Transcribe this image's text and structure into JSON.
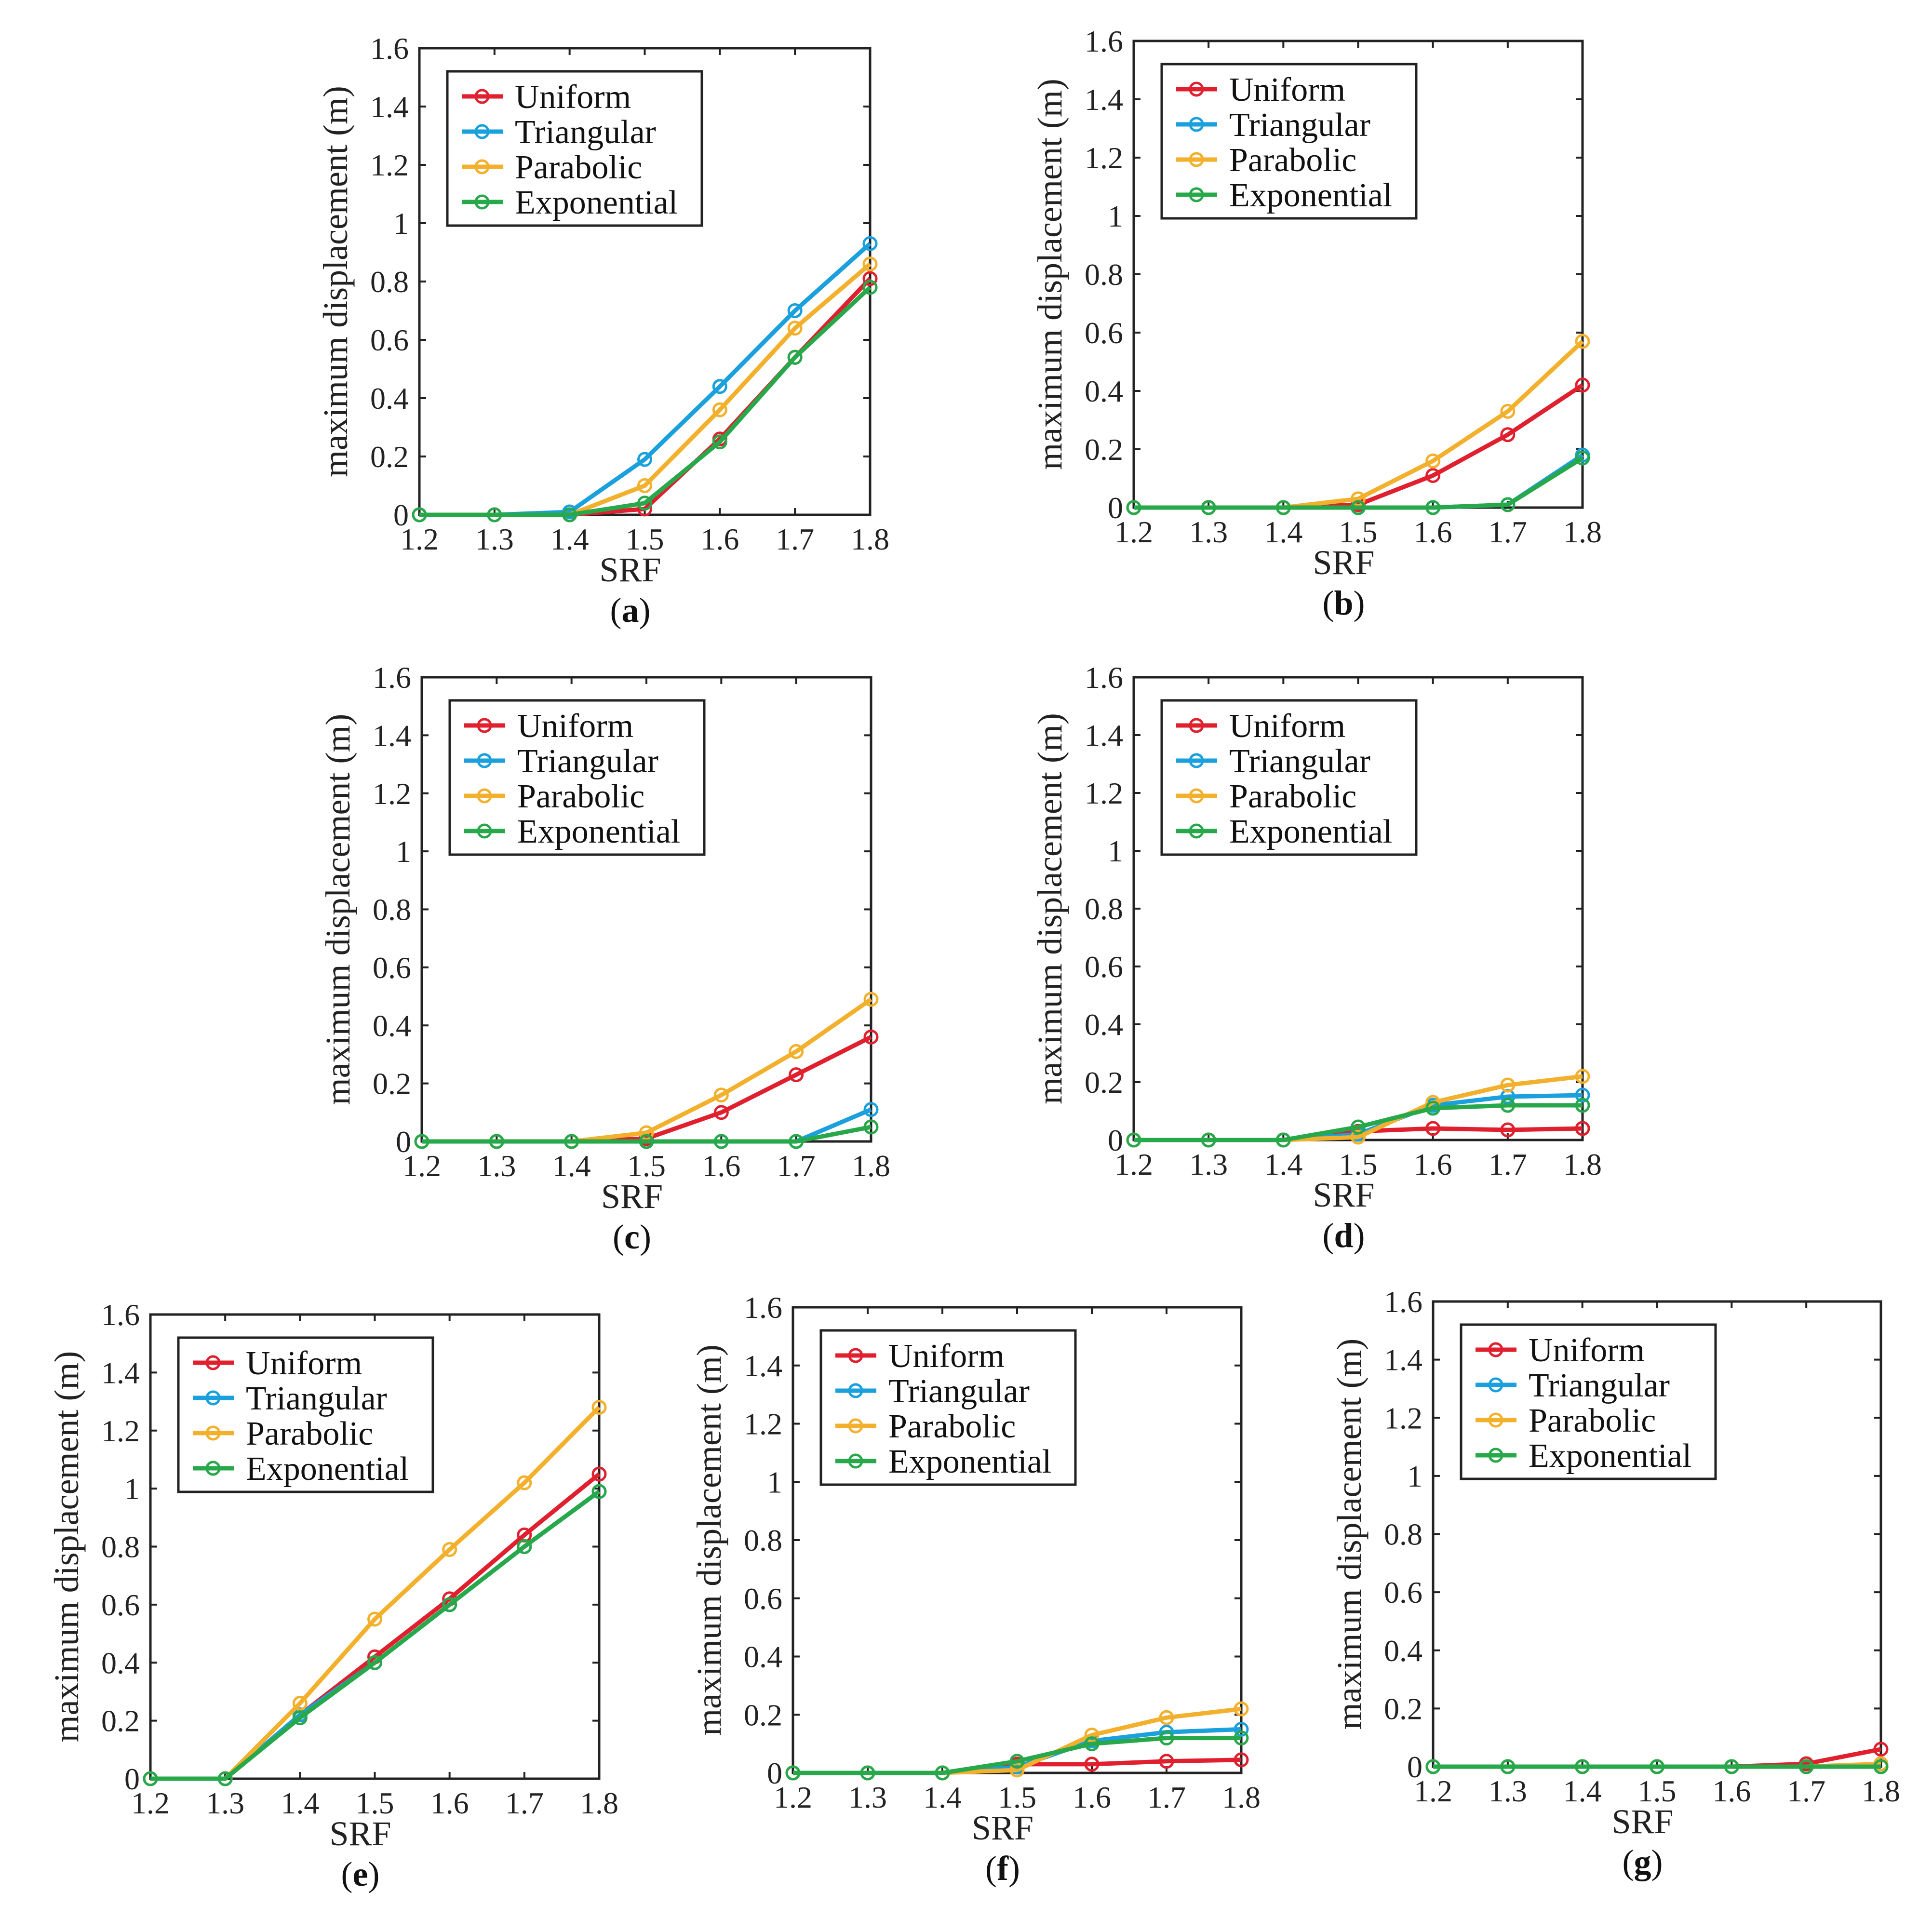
{
  "colors": {
    "Uniform": "#e0202e",
    "Triangular": "#1aa0dc",
    "Parabolic": "#f3b02c",
    "Exponential": "#27a84a"
  },
  "common": {
    "ylabel": "maximum displacement (m)",
    "xlabel": "SRF",
    "xticks": [
      "1.2",
      "1.3",
      "1.4",
      "1.5",
      "1.6",
      "1.7",
      "1.8"
    ],
    "yticks": [
      "0",
      "0.2",
      "0.4",
      "0.6",
      "0.8",
      "1",
      "1.2",
      "1.4",
      "1.6"
    ]
  },
  "chart_data": [
    {
      "type": "line",
      "caption": "a",
      "legend": "top-left",
      "xlabel": "SRF",
      "ylabel": "maximum displacement (m)",
      "xlim": [
        1.2,
        1.8
      ],
      "ylim": [
        0,
        1.6
      ],
      "x": [
        1.2,
        1.3,
        1.4,
        1.5,
        1.6,
        1.7,
        1.8
      ],
      "series": [
        {
          "name": "Uniform",
          "values": [
            0,
            0,
            0,
            0.02,
            0.26,
            0.54,
            0.81
          ]
        },
        {
          "name": "Triangular",
          "values": [
            0,
            0,
            0.01,
            0.19,
            0.44,
            0.7,
            0.93
          ]
        },
        {
          "name": "Parabolic",
          "values": [
            0,
            0,
            0,
            0.1,
            0.36,
            0.64,
            0.86
          ]
        },
        {
          "name": "Exponential",
          "values": [
            0,
            0,
            0,
            0.04,
            0.25,
            0.54,
            0.78
          ]
        }
      ]
    },
    {
      "type": "line",
      "caption": "b",
      "legend": "top-left",
      "xlabel": "SRF",
      "ylabel": "maximum displacement (m)",
      "xlim": [
        1.2,
        1.8
      ],
      "ylim": [
        0,
        1.6
      ],
      "x": [
        1.2,
        1.3,
        1.4,
        1.5,
        1.6,
        1.7,
        1.8
      ],
      "series": [
        {
          "name": "Uniform",
          "values": [
            0,
            0,
            0,
            0.01,
            0.11,
            0.25,
            0.42
          ]
        },
        {
          "name": "Triangular",
          "values": [
            0,
            0,
            0,
            0,
            0,
            0.01,
            0.18
          ]
        },
        {
          "name": "Parabolic",
          "values": [
            0,
            0,
            0,
            0.03,
            0.16,
            0.33,
            0.57
          ]
        },
        {
          "name": "Exponential",
          "values": [
            0,
            0,
            0,
            0,
            0,
            0.01,
            0.17
          ]
        }
      ]
    },
    {
      "type": "line",
      "caption": "c",
      "legend": "top-left",
      "xlabel": "SRF",
      "ylabel": "maximum displacement (m)",
      "xlim": [
        1.2,
        1.8
      ],
      "ylim": [
        0,
        1.6
      ],
      "x": [
        1.2,
        1.3,
        1.4,
        1.5,
        1.6,
        1.7,
        1.8
      ],
      "series": [
        {
          "name": "Uniform",
          "values": [
            0,
            0,
            0,
            0.01,
            0.1,
            0.23,
            0.36
          ]
        },
        {
          "name": "Triangular",
          "values": [
            0,
            0,
            0,
            0,
            0,
            0,
            0.11
          ]
        },
        {
          "name": "Parabolic",
          "values": [
            0,
            0,
            0,
            0.03,
            0.16,
            0.31,
            0.49
          ]
        },
        {
          "name": "Exponential",
          "values": [
            0,
            0,
            0,
            0,
            0,
            0,
            0.05
          ]
        }
      ]
    },
    {
      "type": "line",
      "caption": "d",
      "legend": "top-left",
      "xlabel": "SRF",
      "ylabel": "maximum displacement (m)",
      "xlim": [
        1.2,
        1.8
      ],
      "ylim": [
        0,
        1.6
      ],
      "x": [
        1.2,
        1.3,
        1.4,
        1.5,
        1.6,
        1.7,
        1.8
      ],
      "series": [
        {
          "name": "Uniform",
          "values": [
            0,
            0,
            0,
            0.03,
            0.04,
            0.035,
            0.04
          ]
        },
        {
          "name": "Triangular",
          "values": [
            0,
            0,
            0,
            0.02,
            0.12,
            0.15,
            0.155
          ]
        },
        {
          "name": "Parabolic",
          "values": [
            0,
            0,
            0,
            0.01,
            0.13,
            0.19,
            0.22
          ]
        },
        {
          "name": "Exponential",
          "values": [
            0,
            0,
            0,
            0.045,
            0.11,
            0.12,
            0.12
          ]
        }
      ]
    },
    {
      "type": "line",
      "caption": "e",
      "legend": "top-left",
      "xlabel": "SRF",
      "ylabel": "maximum displacement (m)",
      "xlim": [
        1.2,
        1.8
      ],
      "ylim": [
        0,
        1.6
      ],
      "x": [
        1.2,
        1.3,
        1.4,
        1.5,
        1.6,
        1.7,
        1.8
      ],
      "series": [
        {
          "name": "Uniform",
          "values": [
            0,
            0,
            0.22,
            0.42,
            0.62,
            0.84,
            1.05
          ]
        },
        {
          "name": "Triangular",
          "values": [
            0,
            0,
            0.22,
            0.4,
            0.6,
            0.8,
            0.99
          ]
        },
        {
          "name": "Parabolic",
          "values": [
            0,
            0,
            0.26,
            0.55,
            0.79,
            1.02,
            1.28
          ]
        },
        {
          "name": "Exponential",
          "values": [
            0,
            0,
            0.21,
            0.4,
            0.6,
            0.8,
            0.99
          ]
        }
      ]
    },
    {
      "type": "line",
      "caption": "f",
      "legend": "top-left",
      "xlabel": "SRF",
      "ylabel": "maximum displacement (m)",
      "xlim": [
        1.2,
        1.8
      ],
      "ylim": [
        0,
        1.6
      ],
      "x": [
        1.2,
        1.3,
        1.4,
        1.5,
        1.6,
        1.7,
        1.8
      ],
      "series": [
        {
          "name": "Uniform",
          "values": [
            0,
            0,
            0,
            0.03,
            0.03,
            0.04,
            0.045
          ]
        },
        {
          "name": "Triangular",
          "values": [
            0,
            0,
            0,
            0.02,
            0.11,
            0.14,
            0.15
          ]
        },
        {
          "name": "Parabolic",
          "values": [
            0,
            0,
            0,
            0.01,
            0.13,
            0.19,
            0.22
          ]
        },
        {
          "name": "Exponential",
          "values": [
            0,
            0,
            0,
            0.04,
            0.1,
            0.12,
            0.12
          ]
        }
      ]
    },
    {
      "type": "line",
      "caption": "g",
      "legend": "top-left",
      "xlabel": "SRF",
      "ylabel": "maximum displacement (m)",
      "xlim": [
        1.2,
        1.8
      ],
      "ylim": [
        0,
        1.6
      ],
      "x": [
        1.2,
        1.3,
        1.4,
        1.5,
        1.6,
        1.7,
        1.8
      ],
      "series": [
        {
          "name": "Uniform",
          "values": [
            0,
            0,
            0,
            0,
            0,
            0.01,
            0.06
          ]
        },
        {
          "name": "Triangular",
          "values": [
            0,
            0,
            0,
            0,
            0,
            0,
            0
          ]
        },
        {
          "name": "Parabolic",
          "values": [
            0,
            0,
            0,
            0,
            0,
            0,
            0.01
          ]
        },
        {
          "name": "Exponential",
          "values": [
            0,
            0,
            0,
            0,
            0,
            0,
            0
          ]
        }
      ]
    }
  ]
}
